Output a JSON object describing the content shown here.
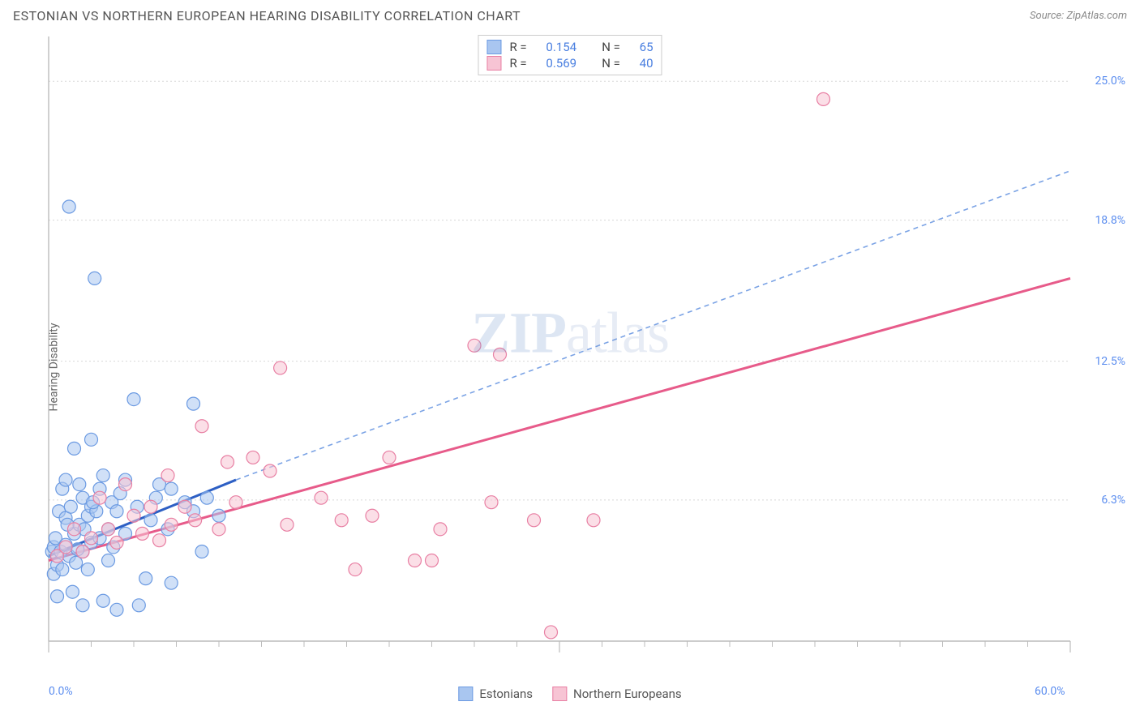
{
  "title": "ESTONIAN VS NORTHERN EUROPEAN HEARING DISABILITY CORRELATION CHART",
  "source_prefix": "Source: ",
  "source_name": "ZipAtlas.com",
  "ylabel": "Hearing Disability",
  "watermark_bold": "ZIP",
  "watermark_light": "atlas",
  "chart": {
    "type": "scatter",
    "background_color": "#ffffff",
    "grid_color": "#d8d8d8",
    "axis_color": "#bcbcbc",
    "xlim": [
      0,
      60
    ],
    "ylim": [
      0,
      27
    ],
    "x_ticks_major": [
      0,
      30,
      60
    ],
    "x_ticks_minor_step": 2.5,
    "y_gridlines": [
      6.3,
      12.5,
      18.8,
      25.0
    ],
    "x_labels": [
      {
        "val": 0,
        "text": "0.0%"
      },
      {
        "val": 60,
        "text": "60.0%"
      }
    ],
    "y_labels": [
      {
        "val": 6.3,
        "text": "6.3%"
      },
      {
        "val": 12.5,
        "text": "12.5%"
      },
      {
        "val": 18.8,
        "text": "18.8%"
      },
      {
        "val": 25.0,
        "text": "25.0%"
      }
    ],
    "series": [
      {
        "name": "Estonians",
        "marker_color": "#a9c6f0",
        "marker_stroke": "#6b9ae2",
        "marker_radius": 8,
        "line_color": "#2d5fc4",
        "line_dash_color": "#7ba3e5",
        "R": "0.154",
        "N": "65",
        "trend_solid": {
          "x1": 0,
          "y1": 3.8,
          "x2": 11,
          "y2": 7.2
        },
        "trend_dash": {
          "x1": 11,
          "y1": 7.2,
          "x2": 60,
          "y2": 21.0
        },
        "points": [
          [
            0.2,
            4.0
          ],
          [
            0.3,
            4.2
          ],
          [
            0.3,
            3.0
          ],
          [
            0.4,
            4.6
          ],
          [
            0.5,
            2.0
          ],
          [
            0.5,
            3.4
          ],
          [
            0.6,
            5.8
          ],
          [
            0.7,
            4.0
          ],
          [
            0.8,
            6.8
          ],
          [
            0.8,
            3.2
          ],
          [
            1.0,
            4.3
          ],
          [
            1.0,
            5.5
          ],
          [
            1.0,
            7.2
          ],
          [
            1.2,
            19.4
          ],
          [
            1.2,
            3.8
          ],
          [
            1.3,
            6.0
          ],
          [
            1.4,
            2.2
          ],
          [
            1.5,
            4.8
          ],
          [
            1.5,
            8.6
          ],
          [
            1.6,
            3.5
          ],
          [
            1.8,
            5.2
          ],
          [
            1.8,
            7.0
          ],
          [
            2.0,
            4.0
          ],
          [
            2.0,
            6.4
          ],
          [
            2.0,
            1.6
          ],
          [
            2.3,
            5.6
          ],
          [
            2.3,
            3.2
          ],
          [
            2.5,
            6.0
          ],
          [
            2.5,
            4.4
          ],
          [
            2.5,
            9.0
          ],
          [
            2.7,
            16.2
          ],
          [
            2.8,
            5.8
          ],
          [
            3.0,
            6.8
          ],
          [
            3.0,
            4.6
          ],
          [
            3.2,
            1.8
          ],
          [
            3.2,
            7.4
          ],
          [
            3.5,
            5.0
          ],
          [
            3.5,
            3.6
          ],
          [
            3.7,
            6.2
          ],
          [
            4.0,
            1.4
          ],
          [
            4.0,
            5.8
          ],
          [
            4.2,
            6.6
          ],
          [
            4.5,
            4.8
          ],
          [
            4.5,
            7.2
          ],
          [
            5.0,
            10.8
          ],
          [
            5.2,
            6.0
          ],
          [
            5.3,
            1.6
          ],
          [
            5.7,
            2.8
          ],
          [
            6.0,
            5.4
          ],
          [
            6.3,
            6.4
          ],
          [
            6.5,
            7.0
          ],
          [
            7.0,
            5.0
          ],
          [
            7.2,
            2.6
          ],
          [
            7.2,
            6.8
          ],
          [
            8.0,
            6.2
          ],
          [
            8.5,
            10.6
          ],
          [
            8.5,
            5.8
          ],
          [
            9.0,
            4.0
          ],
          [
            9.3,
            6.4
          ],
          [
            10.0,
            5.6
          ],
          [
            3.8,
            4.2
          ],
          [
            1.1,
            5.2
          ],
          [
            1.7,
            4.1
          ],
          [
            2.1,
            5.0
          ],
          [
            2.6,
            6.2
          ]
        ]
      },
      {
        "name": "Northern Europeans",
        "marker_color": "#f7c4d4",
        "marker_stroke": "#e87fa3",
        "marker_radius": 8,
        "line_color": "#e75b8a",
        "line_dash_color": "#f29cb8",
        "R": "0.569",
        "N": "40",
        "trend_solid": {
          "x1": 0,
          "y1": 3.6,
          "x2": 60,
          "y2": 16.2
        },
        "trend_dash": null,
        "points": [
          [
            0.5,
            3.8
          ],
          [
            1.0,
            4.2
          ],
          [
            1.5,
            5.0
          ],
          [
            2.0,
            4.0
          ],
          [
            2.5,
            4.6
          ],
          [
            3.0,
            6.4
          ],
          [
            3.5,
            5.0
          ],
          [
            4.0,
            4.4
          ],
          [
            4.5,
            7.0
          ],
          [
            5.0,
            5.6
          ],
          [
            5.5,
            4.8
          ],
          [
            6.0,
            6.0
          ],
          [
            7.0,
            7.4
          ],
          [
            7.2,
            5.2
          ],
          [
            8.0,
            6.0
          ],
          [
            8.6,
            5.4
          ],
          [
            9.0,
            9.6
          ],
          [
            10.0,
            5.0
          ],
          [
            10.5,
            8.0
          ],
          [
            11.0,
            6.2
          ],
          [
            12.0,
            8.2
          ],
          [
            13.0,
            7.6
          ],
          [
            13.6,
            12.2
          ],
          [
            14.0,
            5.2
          ],
          [
            16.0,
            6.4
          ],
          [
            17.2,
            5.4
          ],
          [
            18.0,
            3.2
          ],
          [
            19.0,
            5.6
          ],
          [
            20.0,
            8.2
          ],
          [
            21.5,
            3.6
          ],
          [
            22.5,
            3.6
          ],
          [
            23.0,
            5.0
          ],
          [
            25.0,
            13.2
          ],
          [
            26.0,
            6.2
          ],
          [
            26.5,
            12.8
          ],
          [
            28.5,
            5.4
          ],
          [
            29.5,
            0.4
          ],
          [
            32.0,
            5.4
          ],
          [
            45.5,
            24.2
          ],
          [
            6.5,
            4.5
          ]
        ]
      }
    ]
  },
  "legend_bottom": [
    {
      "label": "Estonians",
      "fill": "#a9c6f0",
      "stroke": "#6b9ae2"
    },
    {
      "label": "Northern Europeans",
      "fill": "#f7c4d4",
      "stroke": "#e87fa3"
    }
  ]
}
